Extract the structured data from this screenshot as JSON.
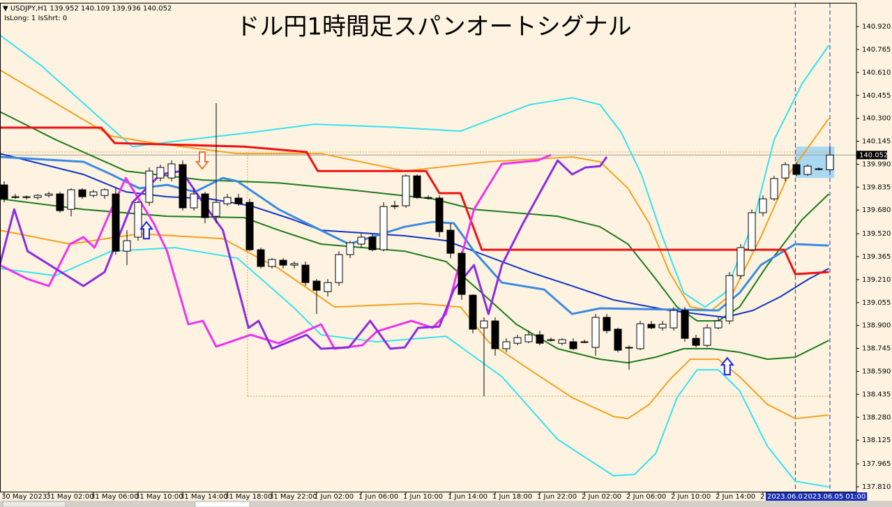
{
  "chart_data": {
    "type": "candlestick",
    "title": "ドル円1時間足スパンオートシグナル",
    "header": [
      "▼ USDJPY,H1  139.952 140.109 139.936 140.052",
      "IsLong: 1 IsShrt: 0"
    ],
    "xlim": [
      -0.375,
      76.375
    ],
    "ylim": [
      137.777,
      141.076
    ],
    "yticks": [
      {
        "value": 140.92,
        "label": "140.920"
      },
      140.765,
      {
        "value": 140.61,
        "label": "140.610"
      },
      140.455,
      {
        "value": 140.3,
        "label": "140.300"
      },
      140.145,
      {
        "value": 139.99,
        "label": "139.990"
      },
      139.835,
      {
        "value": 139.68,
        "label": "139.680"
      },
      {
        "value": 139.52,
        "label": "139.520"
      },
      139.365,
      {
        "value": 139.21,
        "label": "139.210"
      },
      139.055,
      {
        "value": 138.9,
        "label": "138.900"
      },
      138.745,
      {
        "value": 138.59,
        "label": "138.590"
      },
      138.435,
      {
        "value": 138.28,
        "label": "138.280"
      },
      138.125,
      137.965,
      {
        "value": 137.81,
        "label": "137.810"
      }
    ],
    "xticks": [
      {
        "value": 0,
        "label": "30 May 2023"
      },
      {
        "value": 4,
        "label": "31 May 02:00"
      },
      {
        "value": 8,
        "label": "31 May 06:00"
      },
      {
        "value": 12,
        "label": "31 May 10:00"
      },
      {
        "value": 16,
        "label": "31 May 14:00"
      },
      {
        "value": 20,
        "label": "31 May 18:00"
      },
      {
        "value": 24,
        "label": "31 May 22:00"
      },
      {
        "value": 28,
        "label": "1 Jun 02:00"
      },
      {
        "value": 32,
        "label": "1 Jun 06:00"
      },
      {
        "value": 36,
        "label": "1 Jun 10:00"
      },
      {
        "value": 40,
        "label": "1 Jun 14:00"
      },
      {
        "value": 44,
        "label": "1 Jun 18:00"
      },
      {
        "value": 48,
        "label": "1 Jun 22:00"
      },
      {
        "value": 52,
        "label": "2 Jun 02:00"
      },
      {
        "value": 56,
        "label": "2 Jun 06:00"
      },
      {
        "value": 60,
        "label": "2 Jun 10:00"
      },
      {
        "value": 64,
        "label": "2 Jun 14:00"
      },
      {
        "value": 68,
        "label": "2"
      }
    ],
    "period_labels": [
      {
        "value": 68.25,
        "label": "2023.06.0"
      },
      {
        "value": 71.5,
        "label": "2023.06.05 01:00"
      }
    ],
    "vlines": [
      70.9,
      74
    ],
    "up_color": "#ffffff",
    "down_color": "#000000",
    "open": [
      139.85,
      139.77,
      139.765,
      139.765,
      139.779,
      139.789,
      139.685,
      139.817,
      139.779,
      139.779,
      139.789,
      139.402,
      139.497,
      139.732,
      139.897,
      139.897,
      139.987,
      139.695,
      139.789,
      139.638,
      139.723,
      139.761,
      139.732,
      139.412,
      139.299,
      139.341,
      139.308,
      139.308,
      139.2,
      139.129,
      139.19,
      139.379,
      139.45,
      139.497,
      139.412,
      139.704,
      139.709,
      139.911,
      139.765,
      139.761,
      139.544,
      139.388,
      139.105,
      138.884,
      138.931,
      138.743,
      138.78,
      138.79,
      138.837,
      138.804,
      138.78,
      138.79,
      138.79,
      138.752,
      138.955,
      138.875,
      138.752,
      138.743,
      138.908,
      138.884,
      138.884,
      139.002,
      138.813,
      138.766,
      138.884,
      138.931,
      139.237,
      139.412,
      139.662,
      139.756,
      139.897,
      139.987,
      139.921,
      139.959,
      139.952
    ],
    "high": [
      139.874,
      139.789,
      139.779,
      139.789,
      139.803,
      139.803,
      139.827,
      139.827,
      139.817,
      139.827,
      139.827,
      139.544,
      139.742,
      139.968,
      139.987,
      140.015,
      140.015,
      139.827,
      139.803,
      140.402,
      139.789,
      139.789,
      139.756,
      139.426,
      139.355,
      139.355,
      139.332,
      139.332,
      139.214,
      139.214,
      139.402,
      139.473,
      139.52,
      139.52,
      139.732,
      139.742,
      139.921,
      139.921,
      139.779,
      139.779,
      139.591,
      139.402,
      139.11,
      138.955,
      138.955,
      138.813,
      138.837,
      138.865,
      138.865,
      138.818,
      138.813,
      138.813,
      138.804,
      138.978,
      138.978,
      138.884,
      138.766,
      138.931,
      138.931,
      138.931,
      139.025,
      139.025,
      138.837,
      138.908,
      138.955,
      139.261,
      139.45,
      139.685,
      139.779,
      139.911,
      140.003,
      140.003,
      139.987,
      139.968,
      140.109
    ],
    "low": [
      139.732,
      139.756,
      139.751,
      139.751,
      139.765,
      139.662,
      139.638,
      139.756,
      139.765,
      139.756,
      139.379,
      139.308,
      139.473,
      139.709,
      139.874,
      139.874,
      139.676,
      139.676,
      139.591,
      139.591,
      139.709,
      139.709,
      139.402,
      139.285,
      139.285,
      139.285,
      139.285,
      139.167,
      138.978,
      139.096,
      139.167,
      139.355,
      139.426,
      139.402,
      139.402,
      139.685,
      139.695,
      139.756,
      139.751,
      139.497,
      139.355,
      139.073,
      138.846,
      138.422,
      138.696,
      138.719,
      138.766,
      138.78,
      138.766,
      138.79,
      138.766,
      138.733,
      138.78,
      138.696,
      138.846,
      138.719,
      138.601,
      138.733,
      138.875,
      138.865,
      138.865,
      138.79,
      138.752,
      138.752,
      138.875,
      138.908,
      139.214,
      139.402,
      139.638,
      139.742,
      139.874,
      139.911,
      139.911,
      139.949,
      139.936
    ],
    "close": [
      139.756,
      139.765,
      139.77,
      139.779,
      139.789,
      139.676,
      139.817,
      139.77,
      139.803,
      139.817,
      139.402,
      139.473,
      139.732,
      139.944,
      139.968,
      139.992,
      139.695,
      139.789,
      139.629,
      139.732,
      139.765,
      139.723,
      139.412,
      139.299,
      139.346,
      139.308,
      139.318,
      139.19,
      139.138,
      139.19,
      139.379,
      139.459,
      139.497,
      139.412,
      139.704,
      139.709,
      139.911,
      139.765,
      139.761,
      139.534,
      139.388,
      139.11,
      138.875,
      138.931,
      138.743,
      138.79,
      138.818,
      138.837,
      138.78,
      138.799,
      138.804,
      138.743,
      138.785,
      138.955,
      138.865,
      138.733,
      138.747,
      138.912,
      138.884,
      138.908,
      139.002,
      138.813,
      138.766,
      138.884,
      138.931,
      139.237,
      139.426,
      139.662,
      139.756,
      139.893,
      139.987,
      139.921,
      139.977,
      139.959,
      140.052
    ],
    "highlight": {
      "x": [
        70.9,
        74.4
      ],
      "y": [
        139.897,
        140.109
      ],
      "color": "#a9d9f2"
    },
    "box": {
      "x": [
        21.8,
        74
      ],
      "y": [
        138.422,
        140.072
      ],
      "color": "#e8a040"
    },
    "series": [
      {
        "color": "#35e2f2",
        "width": 2,
        "x": [
          -0.4,
          3.4,
          9,
          11.5,
          16.5,
          22.1,
          27.8,
          34.6,
          40.9,
          47.1,
          50.9,
          53.4,
          55.3,
          57.1,
          59,
          60.9,
          62.8,
          64.6,
          67.1,
          69,
          71.5,
          73.9
        ],
        "values": [
          140.863,
          140.651,
          140.274,
          140.109,
          140.156,
          140.204,
          140.26,
          140.241,
          140.213,
          140.392,
          140.439,
          140.392,
          140.204,
          139.921,
          139.497,
          139.12,
          139.025,
          139.12,
          139.591,
          140.156,
          140.534,
          140.793
        ]
      },
      {
        "color": "#35e2f2",
        "width": 2,
        "x": [
          -0.4,
          4.6,
          9.6,
          15.3,
          20.9,
          25.9,
          28.4,
          33.4,
          39.6,
          44.6,
          49.6,
          54.6,
          56.5,
          58.4,
          60.3,
          62.1,
          64,
          65.9,
          68.4,
          70.9,
          73.9
        ],
        "values": [
          139.285,
          139.237,
          139.402,
          139.426,
          139.355,
          139.025,
          138.837,
          138.79,
          138.827,
          138.554,
          138.13,
          137.885,
          137.894,
          138.036,
          138.413,
          138.601,
          138.601,
          138.46,
          138.083,
          137.847,
          137.809
        ]
      },
      {
        "color": "#f5a11e",
        "width": 2,
        "x": [
          -0.4,
          5.9,
          9.6,
          13.4,
          20.9,
          28.4,
          35.9,
          43.4,
          50.9,
          53.4,
          55.9,
          57.8,
          59.6,
          61.5,
          63.4,
          65.3,
          67.8,
          70.3,
          72.1,
          73.9
        ],
        "values": [
          140.628,
          140.345,
          140.18,
          140.133,
          140.062,
          140.062,
          139.944,
          140.006,
          140.039,
          140.006,
          139.827,
          139.591,
          139.261,
          139.025,
          139.002,
          139.12,
          139.497,
          139.921,
          140.109,
          140.298
        ]
      },
      {
        "color": "#f5a11e",
        "width": 2,
        "x": [
          -0.4,
          5.9,
          12.1,
          19.6,
          24.6,
          29.6,
          37.1,
          40.9,
          43.4,
          47.1,
          50.9,
          54.6,
          55.9,
          57.8,
          59.6,
          61.5,
          64,
          65.9,
          68.4,
          70.9,
          73.9
        ],
        "values": [
          139.544,
          139.45,
          139.52,
          139.487,
          139.285,
          139.025,
          139.049,
          139.025,
          138.79,
          138.601,
          138.413,
          138.285,
          138.271,
          138.366,
          138.531,
          138.672,
          138.672,
          138.554,
          138.366,
          138.271,
          138.295
        ]
      },
      {
        "color": "#1c7a1c",
        "width": 2,
        "x": [
          -0.4,
          4.6,
          10.9,
          17.8,
          24.6,
          30.9,
          38.4,
          42.1,
          49.6,
          53.4,
          55.9,
          58.4,
          60.3,
          62.1,
          64,
          65.9,
          68.4,
          71.5,
          73.9
        ],
        "values": [
          140.345,
          140.156,
          139.944,
          139.883,
          139.864,
          139.817,
          139.756,
          139.685,
          139.638,
          139.567,
          139.45,
          139.214,
          139.025,
          138.931,
          138.931,
          139.025,
          139.308,
          139.615,
          139.789
        ]
      },
      {
        "color": "#1c7a1c",
        "width": 2,
        "x": [
          -0.4,
          7.1,
          14.6,
          21.5,
          24.6,
          28.4,
          35.9,
          39.6,
          42.8,
          45.9,
          49.6,
          53.4,
          55.9,
          58.4,
          60.9,
          63.4,
          65.9,
          68.4,
          70.9,
          73.9
        ],
        "values": [
          139.756,
          139.685,
          139.638,
          139.629,
          139.544,
          139.45,
          139.402,
          139.332,
          139.12,
          138.908,
          138.743,
          138.672,
          138.648,
          138.686,
          138.743,
          138.743,
          138.719,
          138.672,
          138.686,
          138.799
        ]
      },
      {
        "color": "#1133c4",
        "width": 2,
        "x": [
          -0.4,
          7.1,
          10.9,
          14.6,
          18.4,
          22.1,
          25.9,
          28.4,
          35.9,
          39.6,
          43.4,
          47.1,
          50.9,
          54.6,
          59.6,
          64.6,
          67.1,
          69.6,
          72.1,
          73.9
        ],
        "values": [
          140.062,
          139.921,
          139.803,
          139.77,
          139.756,
          139.709,
          139.615,
          139.544,
          139.506,
          139.473,
          139.365,
          139.261,
          139.167,
          139.073,
          139.002,
          138.955,
          139.002,
          139.096,
          139.214,
          139.285
        ]
      },
      {
        "color": "#3a8ae2",
        "width": 3,
        "x": [
          -0.4,
          7.1,
          9.6,
          12.1,
          14.6,
          17.1,
          19.6,
          20.9,
          24.6,
          27.1,
          30.9,
          35.9,
          38.4,
          40.3,
          42.1,
          44.6,
          48.4,
          50.9,
          53.4,
          64,
          65.9,
          67.8,
          70.9,
          73.9
        ],
        "values": [
          140.039,
          140.006,
          139.921,
          139.827,
          139.85,
          139.803,
          139.897,
          139.874,
          139.685,
          139.591,
          139.45,
          139.567,
          139.6,
          139.591,
          139.402,
          139.19,
          139.143,
          138.978,
          139.016,
          139.002,
          139.12,
          139.308,
          139.45,
          139.44
        ]
      },
      {
        "color": "#ee1111",
        "width": 3,
        "x": [
          -0.4,
          8.7,
          9.9,
          21.5,
          27.1,
          28.1,
          37.8,
          39,
          40.9,
          42.8,
          69.9,
          70.9,
          73.9
        ],
        "values": [
          140.237,
          140.237,
          140.133,
          140.109,
          140.072,
          139.944,
          139.944,
          139.794,
          139.794,
          139.412,
          139.412,
          139.247,
          139.261
        ]
      },
      {
        "color": "#ee33ee",
        "width": 3,
        "x": [
          -0.4,
          2.1,
          4,
          5.9,
          7.1,
          8.1,
          9.6,
          10.9,
          13.4,
          14.6,
          16.5,
          17.8,
          19,
          22.1,
          24.6,
          28.4,
          29.6,
          32.1,
          33.4,
          36.5,
          38.4,
          39.6,
          42.1,
          44.6,
          47.8,
          49
        ],
        "values": [
          139.308,
          139.214,
          139.167,
          139.45,
          139.497,
          139.426,
          139.685,
          139.897,
          139.591,
          139.402,
          138.908,
          138.931,
          138.757,
          138.837,
          138.78,
          138.908,
          138.743,
          138.766,
          138.86,
          138.931,
          138.884,
          138.978,
          139.685,
          139.992,
          140.015,
          140.053
        ]
      },
      {
        "color": "#8a2be2",
        "width": 3,
        "x": [
          -0.4,
          0.9,
          2.1,
          7.1,
          9,
          11.5,
          14,
          15.9,
          17.8,
          19.6,
          21.9,
          22.8,
          24,
          27.1,
          28.4,
          30.9,
          32.8,
          34.6,
          35.9,
          37.1,
          39,
          40.3,
          42.1,
          43.4,
          44.6,
          46.5,
          49.6,
          50.9,
          52.1,
          53.4,
          54
        ],
        "values": [
          139.308,
          139.685,
          139.402,
          139.167,
          139.261,
          139.732,
          139.921,
          139.944,
          139.732,
          139.544,
          138.884,
          138.931,
          138.743,
          138.837,
          138.743,
          138.752,
          138.931,
          138.743,
          138.752,
          138.884,
          138.893,
          139.143,
          139.308,
          138.978,
          139.308,
          139.591,
          140.015,
          139.921,
          139.968,
          139.977,
          140.039
        ]
      }
    ],
    "signals": [
      {
        "x": 17.75,
        "value": 139.959,
        "direction": "down",
        "color": "#f07030"
      },
      {
        "x": 12.75,
        "value": 139.6,
        "direction": "up",
        "color": "#2020e0"
      },
      {
        "x": 64.8,
        "value": 138.681,
        "direction": "up",
        "color": "#2020e0"
      }
    ]
  }
}
